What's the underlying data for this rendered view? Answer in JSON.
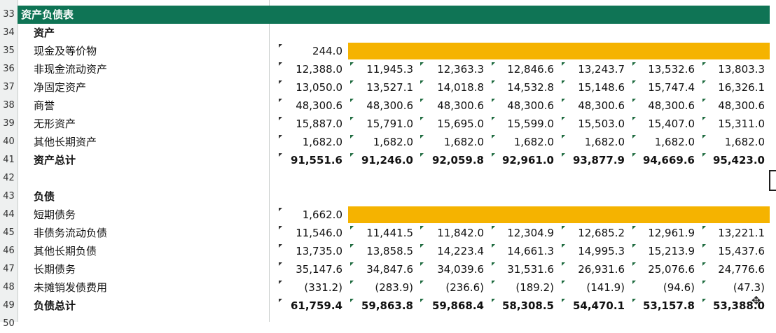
{
  "sheet_title": "资产负债表",
  "colors": {
    "title_bg": "#0f7455",
    "highlight": "#f5b300",
    "indicator": "#1e6b3f"
  },
  "row_numbers": [
    "33",
    "34",
    "35",
    "36",
    "37",
    "38",
    "39",
    "40",
    "41",
    "42",
    "43",
    "44",
    "45",
    "46",
    "47",
    "48",
    "49",
    "50"
  ],
  "assets": {
    "header": "资产",
    "rows": [
      {
        "label": "现金及等价物",
        "values": [
          "244.0"
        ]
      },
      {
        "label": "非现金流动资产",
        "values": [
          "12,388.0",
          "11,945.3",
          "12,363.3",
          "12,846.6",
          "13,243.7",
          "13,532.6",
          "13,803.3"
        ]
      },
      {
        "label": "净固定资产",
        "values": [
          "13,050.0",
          "13,527.1",
          "14,018.8",
          "14,532.8",
          "15,148.6",
          "15,747.4",
          "16,326.1"
        ]
      },
      {
        "label": "商誉",
        "values": [
          "48,300.6",
          "48,300.6",
          "48,300.6",
          "48,300.6",
          "48,300.6",
          "48,300.6",
          "48,300.6"
        ]
      },
      {
        "label": "无形资产",
        "values": [
          "15,887.0",
          "15,791.0",
          "15,695.0",
          "15,599.0",
          "15,503.0",
          "15,407.0",
          "15,311.0"
        ]
      },
      {
        "label": "其他长期资产",
        "values": [
          "1,682.0",
          "1,682.0",
          "1,682.0",
          "1,682.0",
          "1,682.0",
          "1,682.0",
          "1,682.0"
        ]
      },
      {
        "label": "资产总计",
        "values": [
          "91,551.6",
          "91,246.0",
          "92,059.8",
          "92,961.0",
          "93,877.9",
          "94,669.6",
          "95,423.0"
        ],
        "bold": true
      }
    ]
  },
  "liabilities": {
    "header": "负债",
    "rows": [
      {
        "label": "短期债务",
        "values": [
          "1,662.0"
        ]
      },
      {
        "label": "非债务流动负债",
        "values": [
          "11,546.0",
          "11,441.5",
          "11,842.0",
          "12,304.9",
          "12,685.2",
          "12,961.9",
          "13,221.1"
        ]
      },
      {
        "label": "其他长期负债",
        "values": [
          "13,735.0",
          "13,858.5",
          "14,223.4",
          "14,661.3",
          "14,995.3",
          "15,213.9",
          "15,437.6"
        ]
      },
      {
        "label": "长期债务",
        "values": [
          "35,147.6",
          "34,847.6",
          "34,039.6",
          "31,531.6",
          "26,931.6",
          "25,076.6",
          "24,776.6"
        ]
      },
      {
        "label": "未摊销发债费用",
        "values": [
          "(331.2)",
          "(283.9)",
          "(236.6)",
          "(189.2)",
          "(141.9)",
          "(94.6)",
          "(47.3)"
        ]
      },
      {
        "label": "负债总计",
        "values": [
          "61,759.4",
          "59,863.8",
          "59,868.4",
          "58,308.5",
          "54,470.1",
          "53,157.8",
          "53,388.0"
        ],
        "bold": true
      }
    ]
  }
}
